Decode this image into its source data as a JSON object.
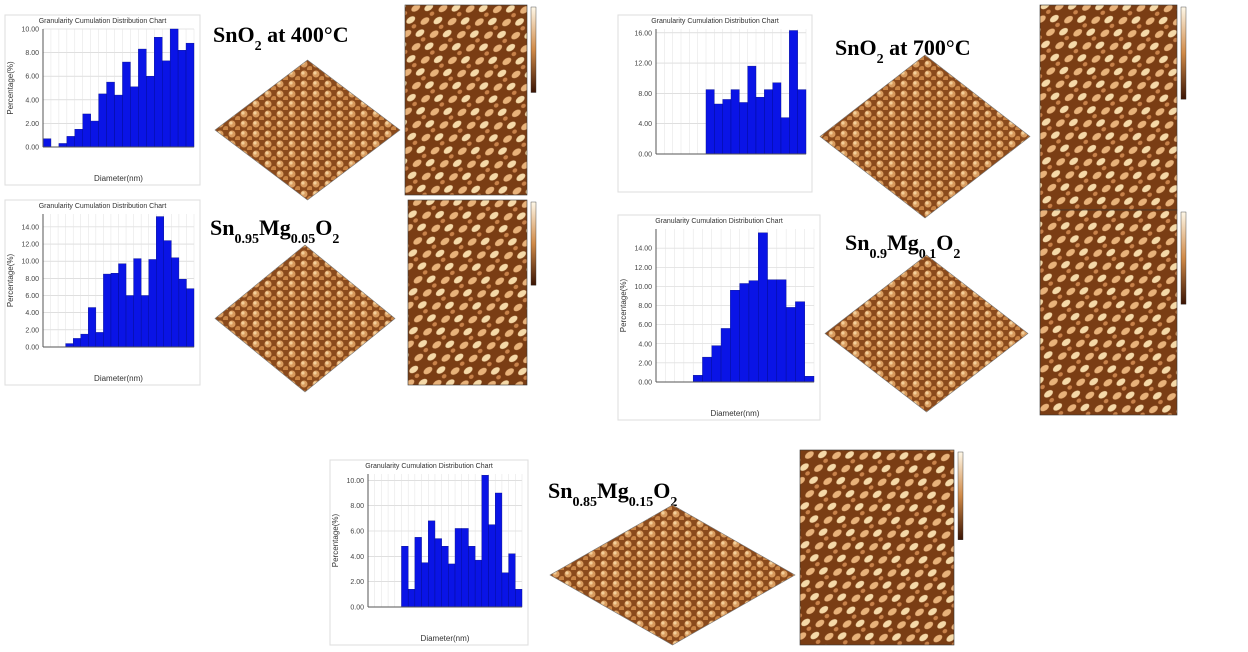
{
  "chart_data": [
    {
      "type": "bar",
      "title": "Granularity Cumulation Distribution Chart",
      "y_label": "Percentage(%)",
      "x_label": "Diameter(nm)",
      "color": "#0a14e6",
      "grid": true,
      "values": [
        0.7,
        0,
        0.3,
        0.9,
        1.5,
        2.8,
        2.2,
        4.5,
        5.5,
        4.4,
        7.2,
        5.1,
        8.3,
        6.0,
        9.3,
        7.3,
        10,
        8.2,
        8.8
      ],
      "ylim": [
        0,
        10
      ],
      "yticks": [
        {
          "value": 0,
          "label": "0.00"
        },
        {
          "value": 2,
          "label": "2.00"
        },
        {
          "value": 4,
          "label": "4.00"
        },
        {
          "value": 6,
          "label": "6.00"
        },
        {
          "value": 8,
          "label": "8.00"
        },
        {
          "value": 10,
          "label": "10.00"
        }
      ]
    },
    {
      "type": "bar",
      "title": "Granularity Cumulation Distribution Chart",
      "color": "#0a14e6",
      "grid": true,
      "values": [
        0,
        0,
        0,
        0,
        0,
        0,
        8.5,
        6.6,
        7.2,
        8.5,
        6.8,
        11.6,
        7.5,
        8.5,
        9.4,
        4.8,
        16.3,
        8.5
      ],
      "ylim": [
        0,
        16.5
      ],
      "yticks": [
        {
          "value": 0,
          "label": "0.00"
        },
        {
          "value": 4,
          "label": "4.00"
        },
        {
          "value": 8,
          "label": "8.00"
        },
        {
          "value": 12,
          "label": "12.00"
        },
        {
          "value": 16,
          "label": "16.00"
        }
      ]
    },
    {
      "type": "bar",
      "title": "Granularity Cumulation Distribution Chart",
      "y_label": "Percentage(%)",
      "x_label": "Diameter(nm)",
      "color": "#0a14e6",
      "grid": true,
      "values": [
        0,
        0,
        0,
        0.4,
        1.0,
        1.5,
        4.6,
        1.7,
        8.5,
        8.6,
        9.7,
        6.0,
        10.3,
        6.0,
        10.2,
        15.2,
        12.4,
        10.4,
        7.9,
        6.8
      ],
      "ylim": [
        0,
        15.5
      ],
      "yticks": [
        {
          "value": 0,
          "label": "0.00"
        },
        {
          "value": 2,
          "label": "2.00"
        },
        {
          "value": 4,
          "label": "4.00"
        },
        {
          "value": 6,
          "label": "6.00"
        },
        {
          "value": 8,
          "label": "8.00"
        },
        {
          "value": 10,
          "label": "10.00"
        },
        {
          "value": 12,
          "label": "12.00"
        },
        {
          "value": 14,
          "label": "14.00"
        }
      ]
    },
    {
      "type": "bar",
      "title": "Granularity Cumulation Distribution Chart",
      "y_label": "Percentage(%)",
      "x_label": "Diameter(nm)",
      "color": "#0a14e6",
      "grid": true,
      "values": [
        0,
        0,
        0,
        0,
        0.7,
        2.6,
        3.8,
        5.6,
        9.6,
        10.3,
        10.6,
        15.6,
        10.7,
        10.7,
        7.8,
        8.4,
        0.6
      ],
      "ylim": [
        0,
        16
      ],
      "yticks": [
        {
          "value": 0,
          "label": "0.00"
        },
        {
          "value": 2,
          "label": "2.00"
        },
        {
          "value": 4,
          "label": "4.00"
        },
        {
          "value": 6,
          "label": "6.00"
        },
        {
          "value": 8,
          "label": "8.00"
        },
        {
          "value": 10,
          "label": "10.00"
        },
        {
          "value": 12,
          "label": "12.00"
        },
        {
          "value": 14,
          "label": "14.00"
        }
      ]
    },
    {
      "type": "bar",
      "title": "Granularity Cumulation Distribution Chart",
      "y_label": "Percentage(%)",
      "x_label": "Diameter(nm)",
      "color": "#0a14e6",
      "grid": true,
      "values": [
        0,
        0,
        0,
        0,
        0,
        4.8,
        1.4,
        5.5,
        3.5,
        6.8,
        5.4,
        4.8,
        3.4,
        6.2,
        6.2,
        4.8,
        3.7,
        10.4,
        6.5,
        9.0,
        2.7,
        4.2,
        1.4
      ],
      "ylim": [
        0,
        10.5
      ],
      "yticks": [
        {
          "value": 0,
          "label": "0.00"
        },
        {
          "value": 2,
          "label": "2.00"
        },
        {
          "value": 4,
          "label": "4.00"
        },
        {
          "value": 6,
          "label": "6.00"
        },
        {
          "value": 8,
          "label": "8.00"
        },
        {
          "value": 10,
          "label": "10.00"
        }
      ]
    }
  ],
  "panels": [
    {
      "formula": [
        {
          "text": "SnO"
        },
        {
          "text": "2",
          "sub": true
        },
        {
          "text": " at 400°C"
        }
      ]
    },
    {
      "formula": [
        {
          "text": "SnO"
        },
        {
          "text": "2",
          "sub": true
        },
        {
          "text": " at 700°C"
        }
      ]
    },
    {
      "formula": [
        {
          "text": "Sn"
        },
        {
          "text": "0.95",
          "sub": true
        },
        {
          "text": "Mg"
        },
        {
          "text": "0.05",
          "sub": true
        },
        {
          "text": "O"
        },
        {
          "text": "2",
          "sub": true
        }
      ]
    },
    {
      "formula": [
        {
          "text": "Sn"
        },
        {
          "text": "0.9",
          "sub": true
        },
        {
          "text": "Mg"
        },
        {
          "text": "0.1",
          "sub": true
        },
        {
          "text": "O"
        },
        {
          "text": "2",
          "sub": true
        }
      ]
    },
    {
      "formula": [
        {
          "text": "Sn"
        },
        {
          "text": "0.85",
          "sub": true
        },
        {
          "text": "Mg"
        },
        {
          "text": "0.15",
          "sub": true
        },
        {
          "text": "O"
        },
        {
          "text": "2",
          "sub": true
        }
      ]
    }
  ]
}
